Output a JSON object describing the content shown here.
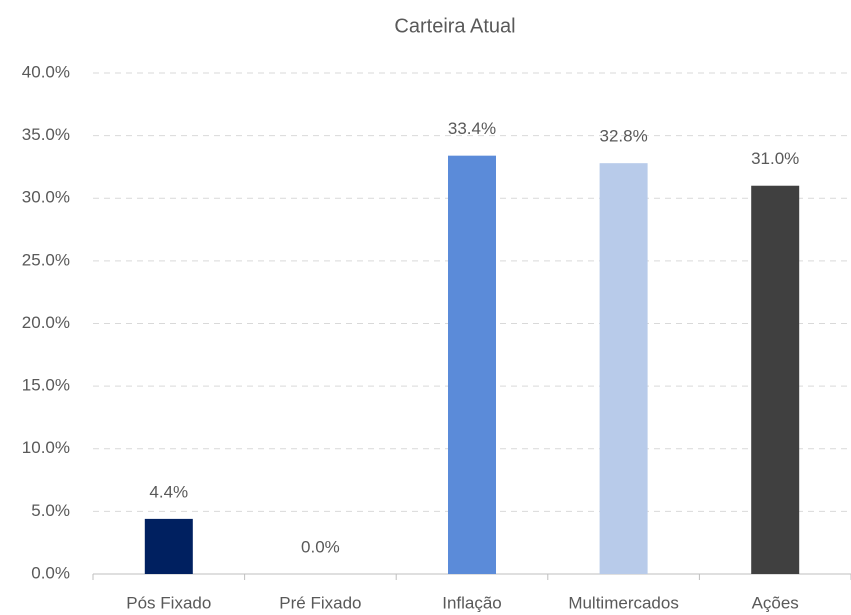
{
  "chart_data": {
    "type": "bar",
    "title": "Carteira Atual",
    "categories": [
      "Pós Fixado",
      "Pré Fixado",
      "Inflação",
      "Multimercados",
      "Ações"
    ],
    "values": [
      4.4,
      0.0,
      33.4,
      32.8,
      31.0
    ],
    "value_labels": [
      "4.4%",
      "0.0%",
      "33.4%",
      "32.8%",
      "31.0%"
    ],
    "colors": [
      "#002060",
      "#002060",
      "#5b8bd9",
      "#b8cbea",
      "#404040"
    ],
    "ylim": [
      0,
      40
    ],
    "yticks": [
      {
        "value": 0,
        "label": "0.0%"
      },
      {
        "value": 5,
        "label": "5.0%"
      },
      {
        "value": 10,
        "label": "10.0%"
      },
      {
        "value": 15,
        "label": "15.0%"
      },
      {
        "value": 20,
        "label": "20.0%"
      },
      {
        "value": 25,
        "label": "25.0%"
      },
      {
        "value": 30,
        "label": "30.0%"
      },
      {
        "value": 35,
        "label": "35.0%"
      },
      {
        "value": 40,
        "label": "40.0%"
      }
    ],
    "grid": true
  }
}
